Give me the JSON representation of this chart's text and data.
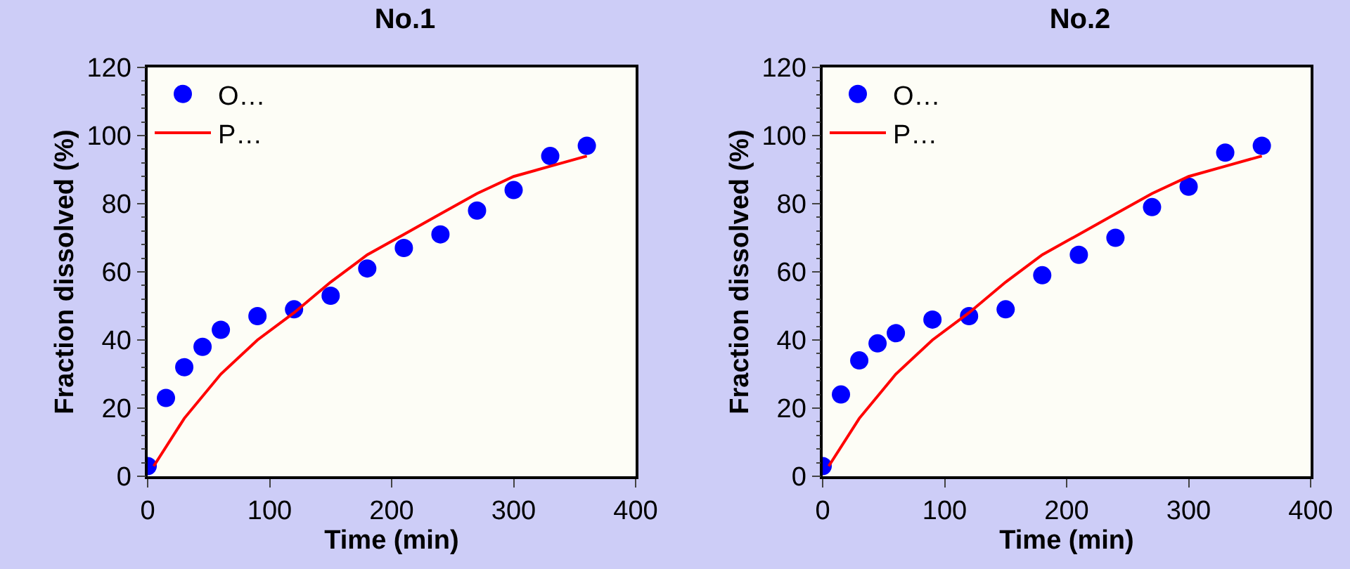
{
  "chart_data": [
    {
      "type": "scatter",
      "title": "No.1",
      "xlabel": "Time (min)",
      "ylabel": "Fraction dissolved (%)",
      "xlim": [
        0,
        400
      ],
      "xticks": [
        0,
        100,
        200,
        300,
        400
      ],
      "ylim": [
        0,
        120
      ],
      "yticks": [
        0,
        20,
        40,
        60,
        80,
        100,
        120
      ],
      "legend": "top left",
      "grid": false,
      "series": [
        {
          "name": "O…",
          "color": "#0000ff",
          "marker": "circle",
          "x": [
            0,
            15,
            30,
            45,
            60,
            90,
            120,
            150,
            180,
            210,
            240,
            270,
            300,
            330,
            360
          ],
          "values": [
            3,
            23,
            32,
            38,
            43,
            47,
            49,
            53,
            61,
            67,
            71,
            78,
            84,
            94,
            97
          ]
        },
        {
          "name": "P…",
          "type": "line",
          "color": "#ff0000",
          "marker": "none",
          "line_style": "solid",
          "x": [
            5,
            30,
            60,
            90,
            120,
            150,
            180,
            210,
            240,
            270,
            300,
            330,
            360
          ],
          "values": [
            3,
            17,
            30,
            40,
            48,
            57,
            65,
            71,
            77,
            83,
            88,
            91,
            94
          ]
        }
      ]
    },
    {
      "type": "scatter",
      "title": "No.2",
      "xlabel": "Time (min)",
      "ylabel": "Fraction dissolved (%)",
      "xlim": [
        0,
        400
      ],
      "xticks": [
        0,
        100,
        200,
        300,
        400
      ],
      "ylim": [
        0,
        120
      ],
      "yticks": [
        0,
        20,
        40,
        60,
        80,
        100,
        120
      ],
      "legend": "top left",
      "grid": false,
      "series": [
        {
          "name": "O…",
          "color": "#0000ff",
          "marker": "circle",
          "x": [
            0,
            15,
            30,
            45,
            60,
            90,
            120,
            150,
            180,
            210,
            240,
            270,
            300,
            330,
            360
          ],
          "values": [
            3,
            24,
            34,
            39,
            42,
            46,
            47,
            49,
            59,
            65,
            70,
            79,
            85,
            95,
            97
          ]
        },
        {
          "name": "P…",
          "type": "line",
          "color": "#ff0000",
          "marker": "none",
          "line_style": "solid",
          "x": [
            5,
            30,
            60,
            90,
            120,
            150,
            180,
            210,
            240,
            270,
            300,
            330,
            360
          ],
          "values": [
            3,
            17,
            30,
            40,
            48,
            57,
            65,
            71,
            77,
            83,
            88,
            91,
            94
          ]
        }
      ]
    }
  ]
}
